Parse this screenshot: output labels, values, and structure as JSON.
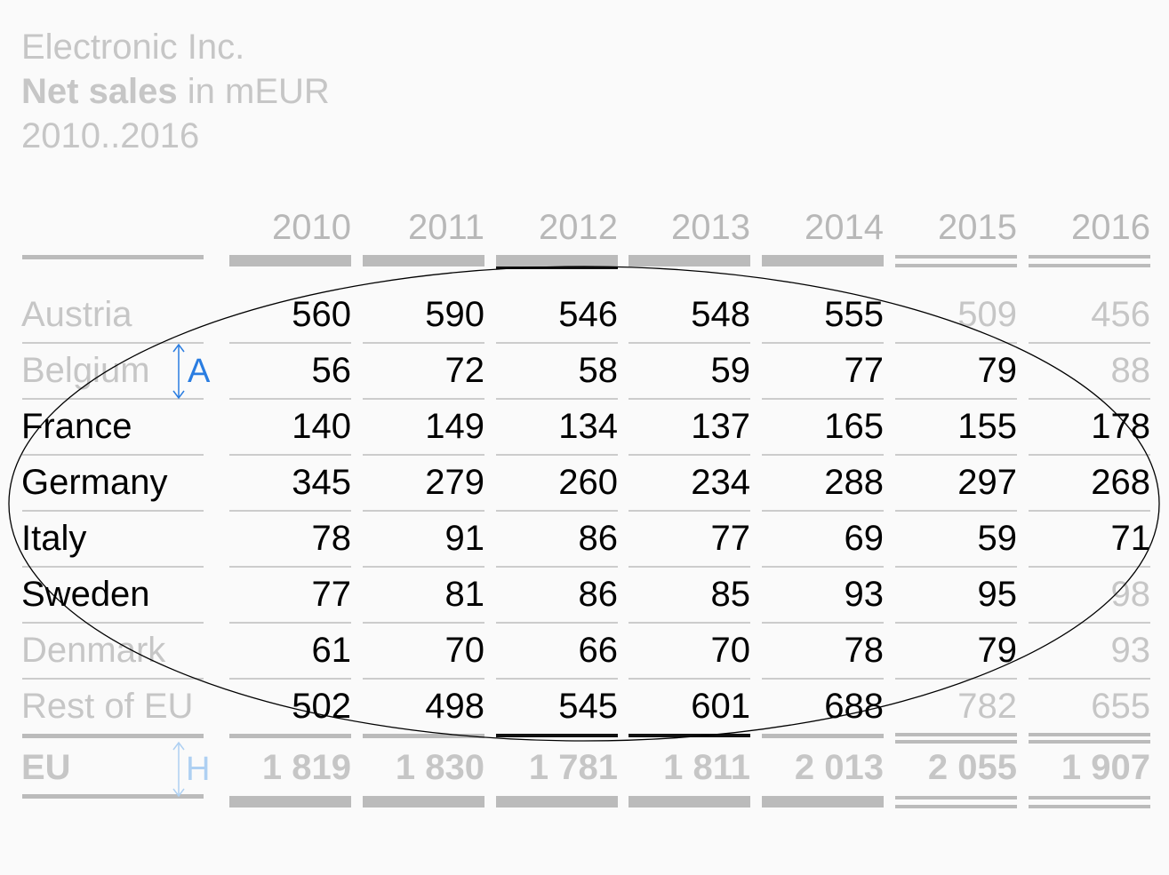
{
  "header": {
    "company": "Electronic Inc.",
    "measure_bold": "Net sales",
    "measure_rest": " in mEUR",
    "period": "2010..2016"
  },
  "markers": {
    "row_height": "A",
    "total_height": "H"
  },
  "chart_data": {
    "type": "table",
    "columns": [
      "2010",
      "2011",
      "2012",
      "2013",
      "2014",
      "2015",
      "2016"
    ],
    "rows": [
      {
        "label": "Austria",
        "values": [
          "560",
          "590",
          "546",
          "548",
          "555",
          "509",
          "456"
        ]
      },
      {
        "label": "Belgium",
        "values": [
          "56",
          "72",
          "58",
          "59",
          "77",
          "79",
          "88"
        ]
      },
      {
        "label": "France",
        "values": [
          "140",
          "149",
          "134",
          "137",
          "165",
          "155",
          "178"
        ]
      },
      {
        "label": "Germany",
        "values": [
          "345",
          "279",
          "260",
          "234",
          "288",
          "297",
          "268"
        ]
      },
      {
        "label": "Italy",
        "values": [
          "78",
          "91",
          "86",
          "77",
          "69",
          "59",
          "71"
        ]
      },
      {
        "label": "Sweden",
        "values": [
          "77",
          "81",
          "86",
          "85",
          "93",
          "95",
          "98"
        ]
      },
      {
        "label": "Denmark",
        "values": [
          "61",
          "70",
          "66",
          "70",
          "78",
          "79",
          "93"
        ]
      },
      {
        "label": "Rest of EU",
        "values": [
          "502",
          "498",
          "545",
          "601",
          "688",
          "782",
          "655"
        ]
      }
    ],
    "total": {
      "label": "EU",
      "values": [
        "1 819",
        "1 830",
        "1 781",
        "1 811",
        "2 013",
        "2 055",
        "1 907"
      ]
    },
    "actual_columns": [
      "2010",
      "2011",
      "2012",
      "2013",
      "2014"
    ],
    "plan_columns": [
      "2015",
      "2016"
    ],
    "colors": {
      "highlight": "#000000",
      "faded": "#c6c6c6",
      "marker": "#2a7de1"
    }
  }
}
